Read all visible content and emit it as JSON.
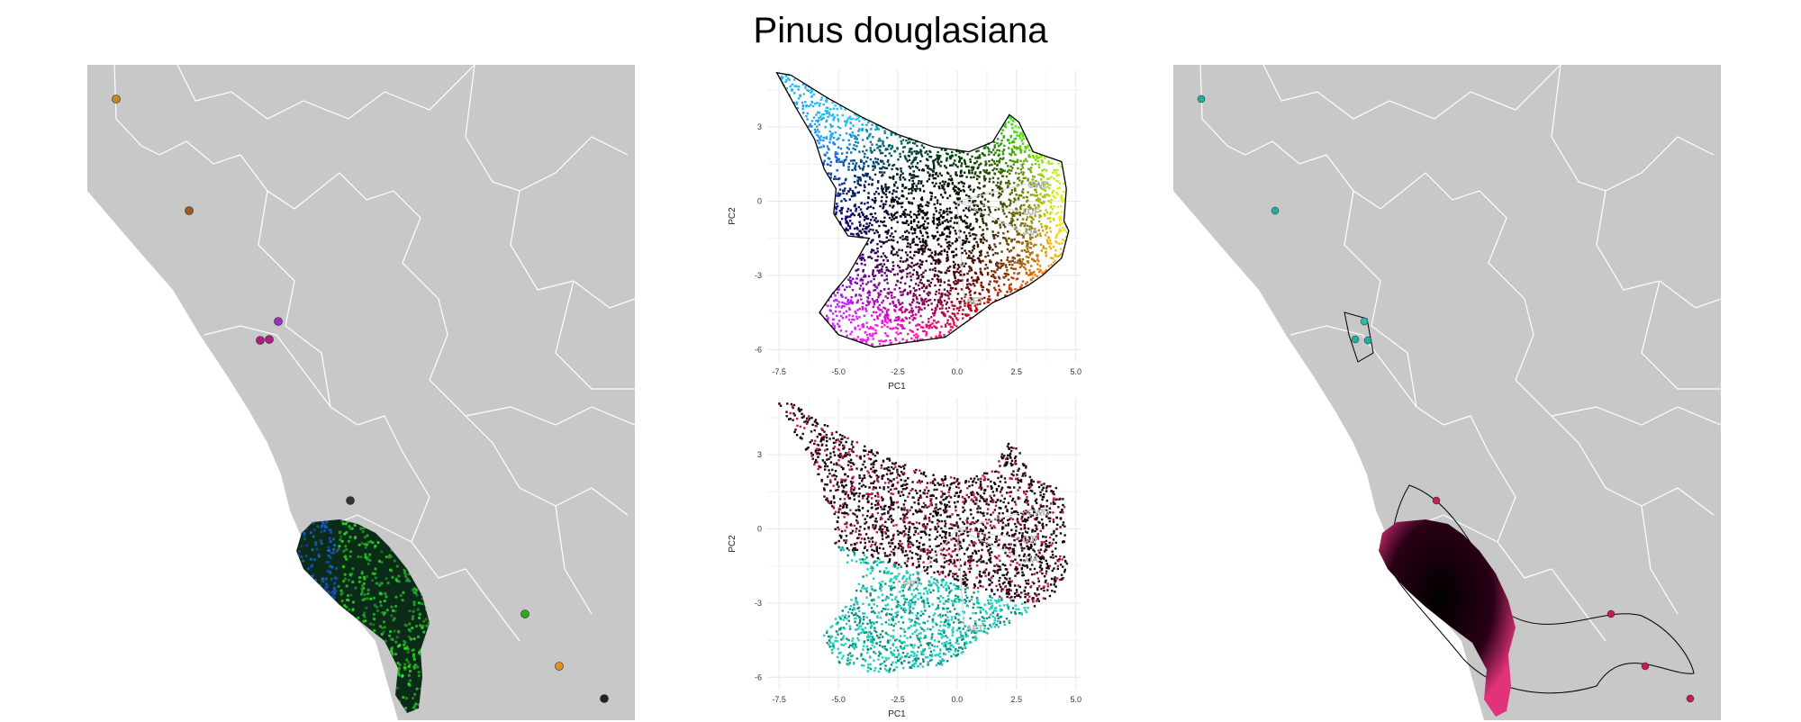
{
  "title": "Pinus douglasiana",
  "chart_data": [
    {
      "panel": "geographic-map-left",
      "type": "scatter",
      "description_colors": "points colored by environmental PCA color space",
      "points": [
        {
          "label": "point",
          "color": "#c08a20"
        },
        {
          "label": "point",
          "color": "#a05a1a"
        },
        {
          "label": "point",
          "color": "#9b2fc0"
        },
        {
          "label": "point",
          "color": "#b02080"
        },
        {
          "label": "point",
          "color": "#333333"
        },
        {
          "label": "point",
          "color": "#2faa20"
        },
        {
          "label": "point",
          "color": "#e09020"
        },
        {
          "label": "point",
          "color": "#222222"
        }
      ]
    },
    {
      "panel": "pca-top",
      "type": "scatter",
      "xlabel": "PC1",
      "ylabel": "PC2",
      "xlim": [
        -8,
        5.2
      ],
      "ylim": [
        -6.5,
        5.3
      ],
      "xticks": [
        "-7.5",
        "-5.0",
        "-2.5",
        "0.0",
        "2.5",
        "5.0"
      ],
      "yticks": [
        "3",
        "0",
        "-3",
        "-6"
      ],
      "xtick_values": [
        -7.5,
        -5.0,
        -2.5,
        0.0,
        2.5,
        5.0
      ],
      "ytick_values": [
        3,
        0,
        -3,
        -6
      ],
      "grid": true,
      "vectors": [
        {
          "label": "CWD",
          "x": 2.9,
          "y": 0.7
        },
        {
          "label": "DJF",
          "x": 2.7,
          "y": -0.4
        },
        {
          "label": "JJA",
          "x": 2.7,
          "y": -1.2
        },
        {
          "label": "AET",
          "x": 0.3,
          "y": -4.0
        }
      ],
      "hull": [
        [
          -7.0,
          5.1
        ],
        [
          -5.5,
          4.2
        ],
        [
          -4.0,
          3.4
        ],
        [
          -2.5,
          2.7
        ],
        [
          -1.0,
          2.2
        ],
        [
          0.5,
          2.0
        ],
        [
          1.5,
          2.4
        ],
        [
          2.2,
          3.5
        ],
        [
          2.6,
          3.2
        ],
        [
          3.2,
          2.0
        ],
        [
          3.8,
          1.8
        ],
        [
          4.4,
          1.6
        ],
        [
          4.6,
          0.5
        ],
        [
          4.5,
          -0.8
        ],
        [
          4.7,
          -1.2
        ],
        [
          4.4,
          -2.3
        ],
        [
          3.6,
          -3.0
        ],
        [
          3.0,
          -3.4
        ],
        [
          2.2,
          -3.8
        ],
        [
          1.5,
          -4.1
        ],
        [
          0.8,
          -4.6
        ],
        [
          -0.5,
          -5.5
        ],
        [
          -2.0,
          -5.7
        ],
        [
          -3.5,
          -5.9
        ],
        [
          -5.0,
          -5.4
        ],
        [
          -5.8,
          -4.5
        ],
        [
          -5.3,
          -3.8
        ],
        [
          -4.6,
          -3.0
        ],
        [
          -3.7,
          -1.5
        ],
        [
          -4.6,
          -1.4
        ],
        [
          -5.2,
          -0.5
        ],
        [
          -5.1,
          0.5
        ],
        [
          -5.6,
          1.3
        ],
        [
          -6.0,
          2.5
        ],
        [
          -6.8,
          3.8
        ],
        [
          -7.6,
          5.2
        ]
      ]
    },
    {
      "panel": "pca-bottom",
      "type": "scatter",
      "xlabel": "PC1",
      "ylabel": "PC2",
      "xlim": [
        -8,
        5.2
      ],
      "ylim": [
        -6.5,
        5.3
      ],
      "xticks": [
        "-7.5",
        "-5.0",
        "-2.5",
        "0.0",
        "2.5",
        "5.0"
      ],
      "yticks": [
        "3",
        "0",
        "-3",
        "-6"
      ],
      "xtick_values": [
        -7.5,
        -5.0,
        -2.5,
        0.0,
        2.5,
        5.0
      ],
      "ytick_values": [
        3,
        0,
        -3,
        -6
      ],
      "grid": true,
      "vectors": [
        {
          "label": "CWD",
          "x": 2.9,
          "y": 0.7
        },
        {
          "label": "DJF",
          "x": 2.7,
          "y": -0.4
        },
        {
          "label": "JJA",
          "x": 2.7,
          "y": -1.2
        },
        {
          "label": "PPT",
          "x": -1.9,
          "y": -2.2
        },
        {
          "label": "AET",
          "x": 0.3,
          "y": -4.0
        }
      ]
    },
    {
      "panel": "geographic-map-right",
      "type": "scatter",
      "points": [
        {
          "label": "point",
          "color": "#20b0a0"
        },
        {
          "label": "point",
          "color": "#20b0a0"
        },
        {
          "label": "point",
          "color": "#20c0b0"
        },
        {
          "label": "point",
          "color": "#c02050"
        },
        {
          "label": "point",
          "color": "#c02050"
        },
        {
          "label": "point",
          "color": "#c02050"
        },
        {
          "label": "point",
          "color": "#c02050"
        }
      ]
    }
  ]
}
